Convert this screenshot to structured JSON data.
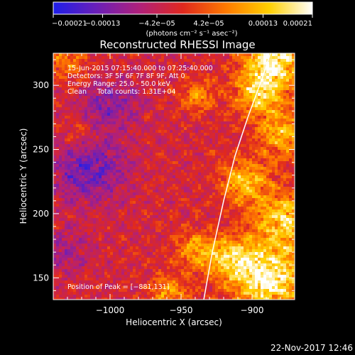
{
  "chart_data": {
    "type": "heatmap",
    "title": "Reconstructed RHESSI Image",
    "xlabel": "Heliocentric X (arcsec)",
    "ylabel": "Heliocentric Y (arcsec)",
    "xlim": [
      -1040,
      -870
    ],
    "ylim": [
      133,
      325
    ],
    "x_ticks": [
      -1000,
      -950,
      -900
    ],
    "x_tick_labels": [
      "−1000",
      "−950",
      "−900"
    ],
    "y_ticks": [
      150,
      200,
      250,
      300
    ],
    "y_tick_labels": [
      "150",
      "200",
      "250",
      "300"
    ],
    "colorbar": {
      "range": [
        -0.00021,
        0.00021
      ],
      "ticks": [
        -0.00021,
        -0.00013,
        -4.2e-05,
        4.2e-05,
        0.00013,
        0.00021
      ],
      "tick_labels": [
        "−0.00021",
        "−0.00013",
        "−4.2e−05",
        "4.2e−05",
        "0.00013",
        "0.00021"
      ],
      "unit_label": "(photons cm⁻² s⁻¹ asec⁻²)",
      "colors": [
        "#1e1ee8",
        "#6a1fb8",
        "#b0207a",
        "#e0281e",
        "#ff7a00",
        "#ffd000",
        "#ffffff"
      ]
    },
    "annotations": [
      "15-Jun-2015 07:15:40.000 to 07:25:40.000",
      "Detectors: 3F 5F 6F 7F 8F 9F, Att 0",
      "Energy Range: 25.0 - 50.0 keV",
      "Clean     Total counts: 1.31E+04"
    ],
    "peak_label": "Position of Peak = [−881,131]",
    "peak": [
      -881,
      131
    ],
    "limb_curve": [
      [
        -934,
        133
      ],
      [
        -928,
        170
      ],
      [
        -920,
        210
      ],
      [
        -912,
        245
      ],
      [
        -903,
        275
      ],
      [
        -893,
        305
      ],
      [
        -887,
        325
      ]
    ],
    "hot_regions": [
      {
        "x": -885,
        "y": 318,
        "sigma": 14,
        "amp": 0.00021
      },
      {
        "x": -895,
        "y": 292,
        "sigma": 12,
        "amp": 0.00014
      },
      {
        "x": -878,
        "y": 262,
        "sigma": 12,
        "amp": 0.00013
      },
      {
        "x": -905,
        "y": 225,
        "sigma": 12,
        "amp": 0.00014
      },
      {
        "x": -878,
        "y": 195,
        "sigma": 14,
        "amp": 0.00016
      },
      {
        "x": -888,
        "y": 150,
        "sigma": 18,
        "amp": 0.00021
      },
      {
        "x": -915,
        "y": 165,
        "sigma": 12,
        "amp": 0.00014
      },
      {
        "x": -940,
        "y": 172,
        "sigma": 10,
        "amp": 0.00012
      },
      {
        "x": -958,
        "y": 138,
        "sigma": 10,
        "amp": 0.00011
      },
      {
        "x": -1030,
        "y": 318,
        "sigma": 10,
        "amp": 9e-05
      },
      {
        "x": -1020,
        "y": 262,
        "sigma": 9,
        "amp": 6e-05
      },
      {
        "x": -938,
        "y": 292,
        "sigma": 9,
        "amp": 0.0001
      }
    ],
    "cold_regions": [
      {
        "x": -1015,
        "y": 235,
        "sigma": 18,
        "amp": -0.00012
      },
      {
        "x": -1000,
        "y": 285,
        "sigma": 14,
        "amp": -9e-05
      },
      {
        "x": -1032,
        "y": 170,
        "sigma": 12,
        "amp": -6e-05
      }
    ]
  },
  "timestamp": "22-Nov-2017 12:46"
}
